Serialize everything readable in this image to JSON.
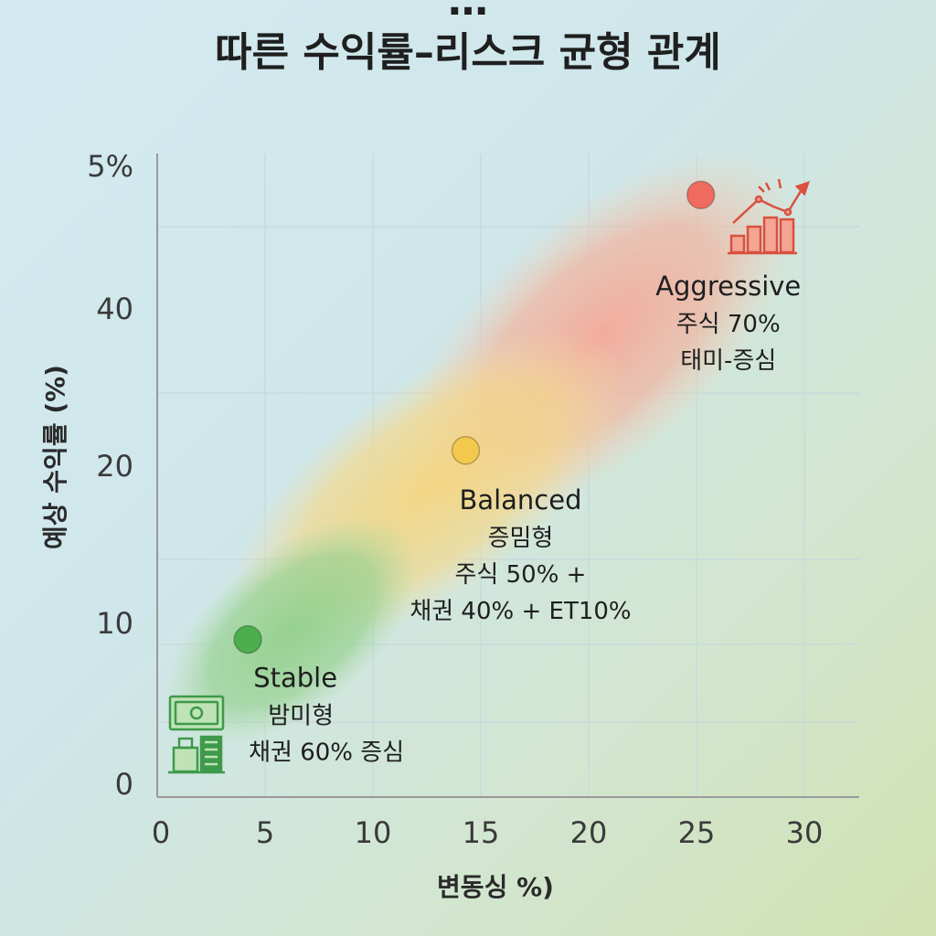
{
  "title_top": "…",
  "title_main": "따른 수익률–리스크 균형 관계",
  "chart_data": {
    "type": "scatter",
    "title": "따른 수익률–리스크 균형 관계",
    "xlabel": "변동싱 %)",
    "ylabel": "예상 수익률 (%)",
    "x_ticks": [
      "0",
      "5",
      "10",
      "15",
      "20",
      "25",
      "30"
    ],
    "y_ticks": [
      "0",
      "10",
      "20",
      "40",
      "5%"
    ],
    "grid": true,
    "points": [
      {
        "name": "Stable",
        "x": 4.2,
        "y": 9,
        "color": "#4cae4f",
        "lines": [
          "밤미형",
          "채권 60% 증심"
        ]
      },
      {
        "name": "Balanced",
        "x": 14.3,
        "y": 22,
        "color": "#f2c94c",
        "lines": [
          "증밈형",
          "주식 50% +",
          "채권 40% + ET10%"
        ]
      },
      {
        "name": "Aggressive",
        "x": 25.2,
        "y": 48,
        "color": "#ef6b5f",
        "lines": [
          "주식 70%",
          "태미-증심"
        ]
      }
    ]
  },
  "colors": {
    "stable": "#4cae4f",
    "balanced": "#f2c94c",
    "aggressive": "#ef6b5f"
  },
  "icons": [
    "cash-building-icon",
    "stock-chart-icon"
  ]
}
